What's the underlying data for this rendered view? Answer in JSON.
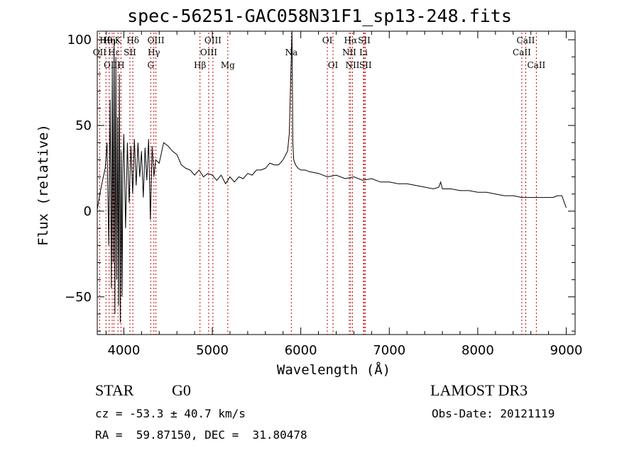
{
  "title": "spec-56251-GAC058N31F1_sp13-248.fits",
  "info": {
    "class": "STAR",
    "subclass": "G0",
    "survey": "LAMOST DR3",
    "cz": "cz = -53.3 ± 40.7 km/s",
    "obs_date": "Obs-Date: 20121119",
    "radec": "RA =  59.87150, DEC =  31.80478"
  },
  "chart_data": {
    "type": "line",
    "title": "spec-56251-GAC058N31F1_sp13-248.fits",
    "xlabel": "Wavelength (Å)",
    "ylabel": "Flux (relative)",
    "xlim": [
      3700,
      9100
    ],
    "ylim": [
      -72,
      105
    ],
    "xticks": [
      4000,
      5000,
      6000,
      7000,
      8000,
      9000
    ],
    "yticks": [
      -50,
      0,
      50,
      100
    ],
    "line_color": "#000000",
    "marker_color": "#c00000",
    "series": [
      {
        "x": [
          3700,
          3730,
          3760,
          3790,
          3810,
          3830,
          3845,
          3860,
          3870,
          3880,
          3890,
          3900,
          3910,
          3920,
          3930,
          3940,
          3950,
          3960,
          3970,
          3980,
          3990,
          4000,
          4020,
          4040,
          4060,
          4080,
          4100,
          4120,
          4140,
          4160,
          4180,
          4200,
          4220,
          4240,
          4260,
          4280,
          4300,
          4320,
          4340,
          4360,
          4400,
          4450,
          4500,
          4550,
          4600,
          4650,
          4700,
          4750,
          4800,
          4850,
          4900,
          4950,
          5000,
          5050,
          5100,
          5150,
          5200,
          5250,
          5300,
          5350,
          5400,
          5450,
          5500,
          5550,
          5600,
          5650,
          5700,
          5750,
          5800,
          5850,
          5870,
          5880,
          5890,
          5895,
          5900,
          5905,
          5910,
          5920,
          5940,
          5970,
          6000,
          6050,
          6100,
          6200,
          6300,
          6400,
          6500,
          6600,
          6700,
          6800,
          6900,
          7000,
          7100,
          7200,
          7300,
          7400,
          7500,
          7560,
          7580,
          7600,
          7700,
          7800,
          7900,
          8000,
          8100,
          8200,
          8300,
          8400,
          8500,
          8600,
          8700,
          8800,
          8850,
          8900,
          8950,
          9000
        ],
        "y": [
          1,
          10,
          18,
          25,
          40,
          -20,
          65,
          -45,
          85,
          -30,
          100,
          -60,
          90,
          -40,
          55,
          -55,
          80,
          -65,
          35,
          -50,
          25,
          45,
          -10,
          40,
          5,
          38,
          10,
          42,
          15,
          40,
          20,
          35,
          8,
          37,
          18,
          42,
          -5,
          38,
          20,
          30,
          28,
          40,
          38,
          35,
          33,
          27,
          25,
          24,
          21,
          24,
          20,
          22,
          21,
          18,
          21,
          16,
          20,
          17,
          20,
          19,
          22,
          21,
          24,
          24,
          25,
          28,
          27,
          27,
          30,
          35,
          45,
          65,
          85,
          95,
          105,
          80,
          40,
          30,
          27,
          25,
          24,
          24,
          23,
          22,
          20,
          21,
          19,
          20,
          18,
          19,
          17,
          17,
          16,
          16,
          15,
          14,
          13,
          14,
          17,
          13,
          13,
          12,
          12,
          11,
          11,
          10,
          9,
          9,
          8,
          8,
          8,
          8,
          8,
          9,
          9,
          2
        ]
      }
    ],
    "lines": [
      {
        "label": "Hθ",
        "wl": 3798,
        "row": 0
      },
      {
        "label": "OII",
        "wl": 3727,
        "row": 1
      },
      {
        "label": "OIII",
        "wl": 3869,
        "row": 2
      },
      {
        "label": "Hη",
        "wl": 3835,
        "row": 0
      },
      {
        "label": "Hε",
        "wl": 3889,
        "row": 1
      },
      {
        "label": "K",
        "wl": 3934,
        "row": 0
      },
      {
        "label": "H",
        "wl": 3968,
        "row": 2
      },
      {
        "label": "SII",
        "wl": 4069,
        "row": 1
      },
      {
        "label": "Hδ",
        "wl": 4102,
        "row": 0
      },
      {
        "label": "OIII",
        "wl": 4363,
        "row": 0
      },
      {
        "label": "Hγ",
        "wl": 4340,
        "row": 1
      },
      {
        "label": "G",
        "wl": 4304,
        "row": 2
      },
      {
        "label": "Hβ",
        "wl": 4861,
        "row": 2
      },
      {
        "label": "OIII",
        "wl": 4959,
        "row": 1
      },
      {
        "label": "OIII",
        "wl": 5007,
        "row": 0
      },
      {
        "label": "Mg",
        "wl": 5175,
        "row": 2
      },
      {
        "label": "Na",
        "wl": 5893,
        "row": 1
      },
      {
        "label": "OI",
        "wl": 6300,
        "row": 0
      },
      {
        "label": "OI",
        "wl": 6364,
        "row": 2
      },
      {
        "label": "Hα",
        "wl": 6563,
        "row": 0
      },
      {
        "label": "NII",
        "wl": 6548,
        "row": 1
      },
      {
        "label": "NII",
        "wl": 6584,
        "row": 2
      },
      {
        "label": "SII",
        "wl": 6717,
        "row": 0
      },
      {
        "label": "Li",
        "wl": 6708,
        "row": 1
      },
      {
        "label": "SII",
        "wl": 6731,
        "row": 2
      },
      {
        "label": "CaII",
        "wl": 8542,
        "row": 0
      },
      {
        "label": "CaII",
        "wl": 8498,
        "row": 1
      },
      {
        "label": "CaII",
        "wl": 8662,
        "row": 2
      }
    ]
  }
}
